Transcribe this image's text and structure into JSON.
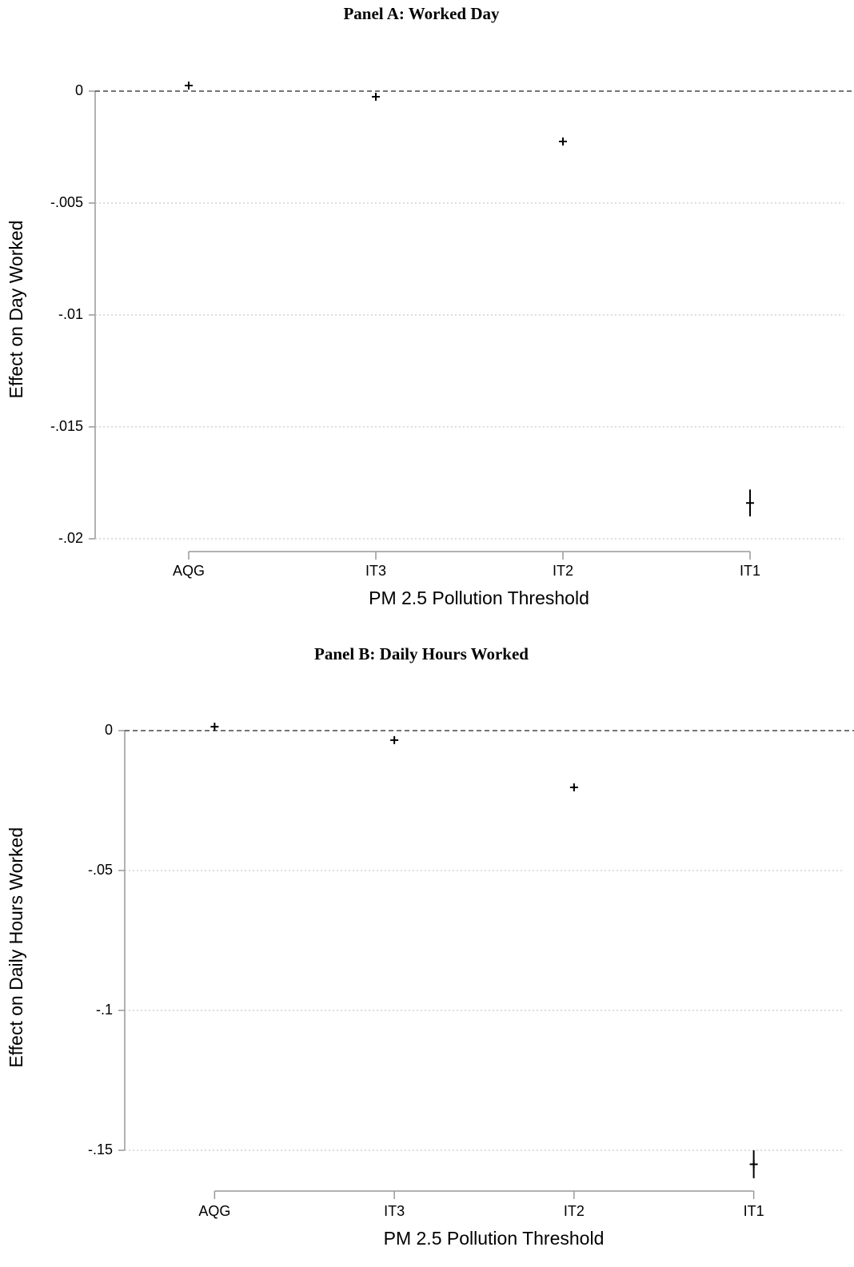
{
  "chart_data": [
    {
      "type": "scatter",
      "title": "Panel A: Worked Day",
      "x_label": "PM 2.5 Pollution Threshold",
      "y_label": "Effect on Day Worked",
      "categories": [
        "AQG",
        "IT3",
        "IT2",
        "IT1"
      ],
      "series": [
        {
          "color": "#000000",
          "values": [
            0.00025,
            -0.00025,
            -0.00225,
            -0.0184
          ],
          "errors": [
            5e-05,
            5e-05,
            0.0001,
            0.0006
          ]
        }
      ],
      "ylim": [
        -0.02,
        0.0005
      ],
      "yticks": [
        0,
        {
          "value": -0.005,
          "label": "-.005"
        },
        {
          "value": -0.01,
          "label": "-.01"
        },
        {
          "value": -0.015,
          "label": "-.015"
        },
        {
          "value": -0.02,
          "label": "-.02"
        }
      ],
      "reference_line": 0,
      "grid": true
    },
    {
      "type": "scatter",
      "title": "Panel B: Daily Hours Worked",
      "x_label": "PM 2.5 Pollution Threshold",
      "y_label": "Effect on Daily Hours Worked",
      "categories": [
        "AQG",
        "IT3",
        "IT2",
        "IT1"
      ],
      "series": [
        {
          "color": "#000000",
          "values": [
            0.0014,
            -0.0034,
            -0.0203,
            -0.155
          ],
          "errors": [
            0.0003,
            0.0004,
            0.0006,
            0.005
          ]
        }
      ],
      "ylim": [
        -0.16,
        0.005
      ],
      "yticks": [
        0,
        {
          "value": -0.05,
          "label": "-.05"
        },
        {
          "value": -0.1,
          "label": "-.1"
        },
        {
          "value": -0.15,
          "label": "-.15"
        }
      ],
      "reference_line": 0,
      "grid": true
    }
  ]
}
